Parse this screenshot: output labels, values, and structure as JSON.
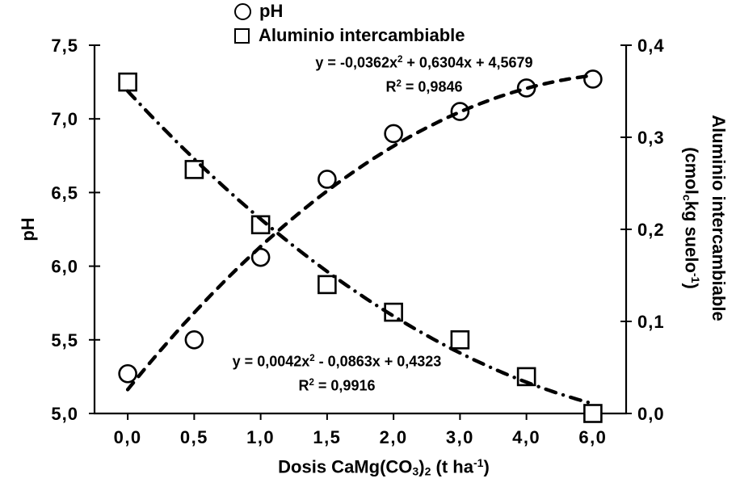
{
  "colors": {
    "ink": "#000000",
    "background": "#ffffff"
  },
  "legend": {
    "items": [
      {
        "marker": "circle",
        "label": "pH"
      },
      {
        "marker": "square",
        "label": "Aluminio intercambiable"
      }
    ]
  },
  "chart_data": {
    "type": "scatter",
    "grid": "off",
    "legend_position": "top-center",
    "categories": [
      "0,0",
      "0,5",
      "1,0",
      "1,5",
      "2,0",
      "3,0",
      "4,0",
      "6,0"
    ],
    "series": [
      {
        "name": "pH",
        "axis": "left",
        "marker": "circle",
        "values": [
          5.27,
          5.5,
          6.06,
          6.59,
          6.9,
          7.05,
          7.21,
          7.27
        ],
        "trendline": {
          "type": "polynomial",
          "order": 2,
          "coeffs": [
            -0.0362,
            0.6304,
            4.5679
          ],
          "dash": "dashed",
          "equation": "y = -0,0362x2 + 0,6304x + 4,5679",
          "r2": "R2 = 0,9846",
          "equation_segments": [
            {
              "t": "y = -0,0362x"
            },
            {
              "t": "2",
              "s": "sup"
            },
            {
              "t": " + 0,6304x + 4,5679"
            }
          ],
          "r2_segments": [
            {
              "t": "R"
            },
            {
              "t": "2",
              "s": "sup"
            },
            {
              "t": " = 0,9846"
            }
          ]
        }
      },
      {
        "name": "Aluminio intercambiable",
        "axis": "right",
        "marker": "square",
        "values": [
          0.36,
          0.265,
          0.205,
          0.14,
          0.11,
          0.08,
          0.04,
          0.0
        ],
        "trendline": {
          "type": "polynomial",
          "order": 2,
          "coeffs": [
            0.0042,
            -0.0863,
            0.4323
          ],
          "dash": "dash-dot",
          "equation": "y = 0,0042x2 - 0,0863x + 0,4323",
          "r2": "R2 = 0,9916",
          "equation_segments": [
            {
              "t": "y = 0,0042x"
            },
            {
              "t": "2",
              "s": "sup"
            },
            {
              "t": " - 0,0863x + 0,4323"
            }
          ],
          "r2_segments": [
            {
              "t": "R"
            },
            {
              "t": "2",
              "s": "sup"
            },
            {
              "t": " = 0,9916"
            }
          ]
        }
      }
    ],
    "left_axis": {
      "title": "pH",
      "ticks": [
        "7,5",
        "7,0",
        "6,5",
        "6,0",
        "5,5",
        "5,0"
      ],
      "min": 5.0,
      "max": 7.5
    },
    "right_axis": {
      "title_line1": "Aluminio intercambiable",
      "title_line2": "(cmolc kg suelo-1)",
      "title_line2_segments": [
        {
          "t": "(cmol"
        },
        {
          "t": "c",
          "s": "sub"
        },
        {
          "t": "kg suelo"
        },
        {
          "t": "-1",
          "s": "sup"
        },
        {
          "t": ")"
        }
      ],
      "ticks": [
        "0,4",
        "0,3",
        "0,2",
        "0,1",
        "0,0"
      ],
      "min": 0.0,
      "max": 0.4
    },
    "x_axis": {
      "title": "Dosis CaMg(CO3)2 (t ha-1)",
      "title_segments": [
        {
          "t": "Dosis CaMg(CO"
        },
        {
          "t": "3",
          "s": "sub"
        },
        {
          "t": ")"
        },
        {
          "t": "2",
          "s": "sub"
        },
        {
          "t": " (t ha"
        },
        {
          "t": "-1",
          "s": "sup"
        },
        {
          "t": ")"
        }
      ]
    }
  }
}
